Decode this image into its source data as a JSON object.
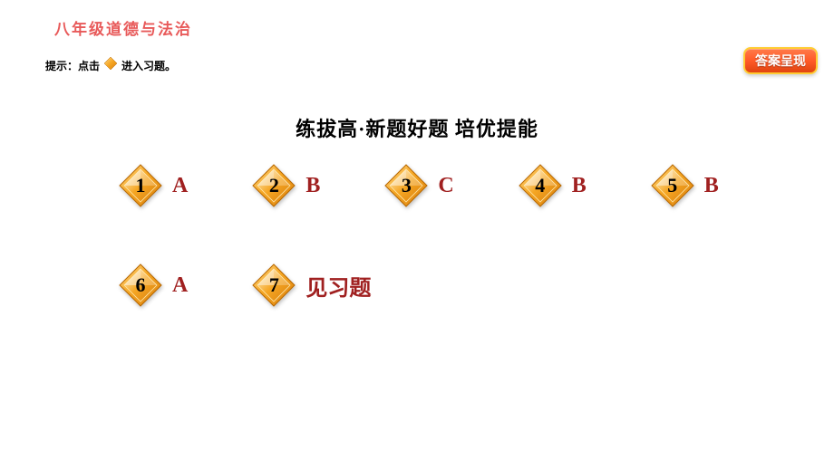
{
  "header": {
    "title": "八年级道德与法治"
  },
  "hint": {
    "prefix": "提示：",
    "text_before": "点击",
    "text_after": "进入习题。"
  },
  "answer_button": {
    "label": "答案呈现"
  },
  "section": {
    "title": "练拔高·新题好题  培优提能"
  },
  "diamond_style": {
    "fill_light": "#ffd98a",
    "fill_mid": "#f5a623",
    "fill_dark": "#d97f0d",
    "stroke": "#b86800",
    "number_color": "#000000"
  },
  "small_diamond_style": {
    "fill_light": "#ffd98a",
    "fill_mid": "#f5a623",
    "fill_dark": "#d97f0d",
    "stroke": "#b86800"
  },
  "answer_color": "#a02020",
  "items": [
    {
      "num": "1",
      "answer": "A",
      "is_text": false
    },
    {
      "num": "2",
      "answer": "B",
      "is_text": false
    },
    {
      "num": "3",
      "answer": "C",
      "is_text": false
    },
    {
      "num": "4",
      "answer": "B",
      "is_text": false
    },
    {
      "num": "5",
      "answer": "B",
      "is_text": false
    },
    {
      "num": "6",
      "answer": "A",
      "is_text": false
    },
    {
      "num": "7",
      "answer": "见习题",
      "is_text": true
    }
  ],
  "layout": {
    "row_size": 5
  }
}
